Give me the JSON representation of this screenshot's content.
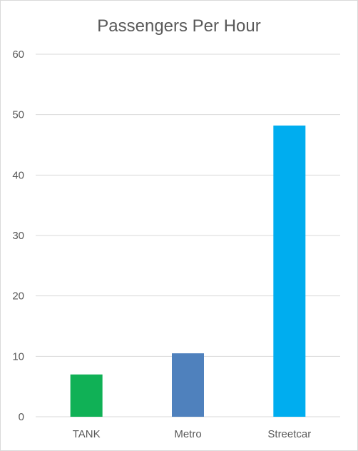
{
  "chart_data": {
    "type": "bar",
    "title": "Passengers Per Hour",
    "xlabel": "",
    "ylabel": "",
    "categories": [
      "TANK",
      "Metro",
      "Streetcar"
    ],
    "values": [
      7,
      10.5,
      48.2
    ],
    "colors": [
      "#10b156",
      "#4f81bd",
      "#00adef"
    ],
    "ylim": [
      0,
      60
    ],
    "yticks": [
      0,
      10,
      20,
      30,
      40,
      50,
      60
    ],
    "grid": true,
    "legend": "none"
  }
}
